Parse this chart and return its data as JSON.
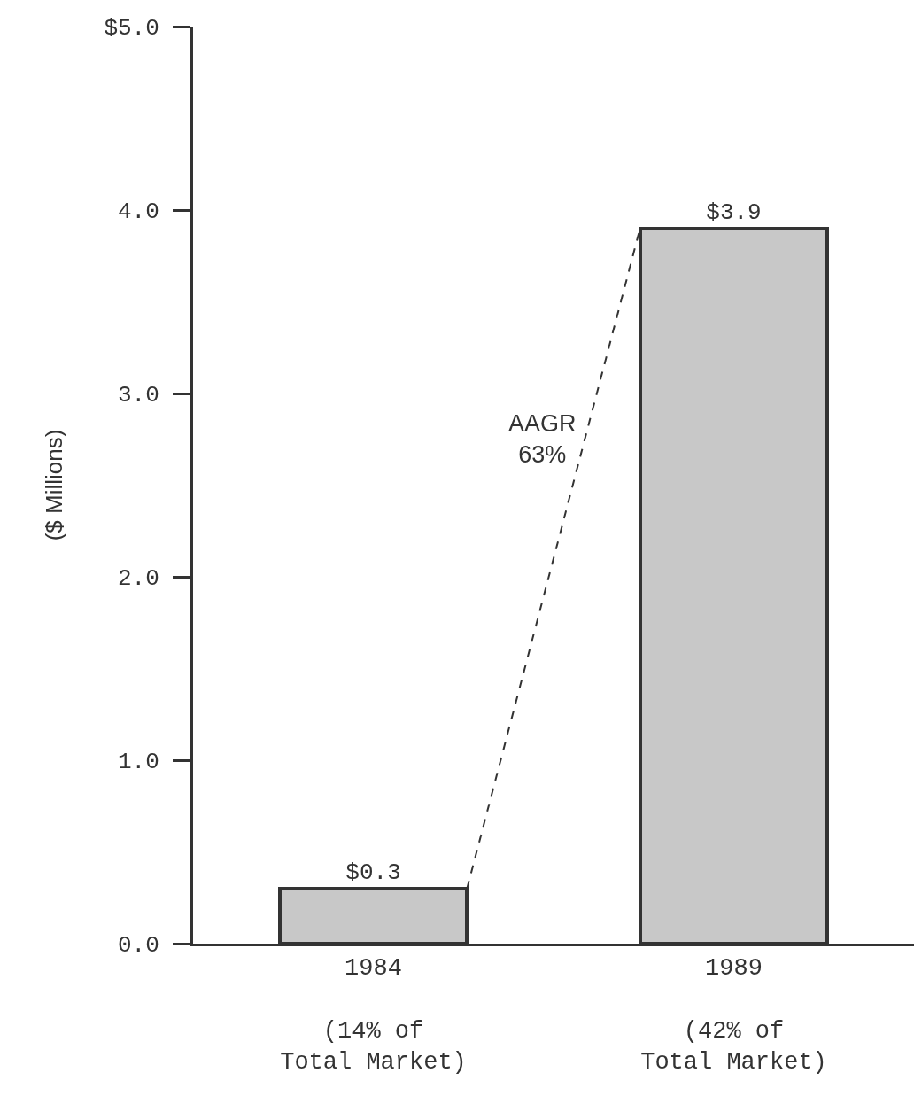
{
  "chart_data": {
    "type": "bar",
    "ylabel": "($ Millions)",
    "categories": [
      "1984\n\n(14% of\nTotal Market)",
      "1989\n\n(42% of\nTotal Market)"
    ],
    "values": [
      0.3,
      3.9
    ],
    "value_labels": [
      "$0.3",
      "$3.9"
    ],
    "color": "#c8c8c8",
    "ylim": [
      0,
      5
    ],
    "yticks": [
      {
        "value": 0,
        "label": "0.0"
      },
      {
        "value": 1,
        "label": "1.0"
      },
      {
        "value": 2,
        "label": "2.0"
      },
      {
        "value": 3,
        "label": "3.0"
      },
      {
        "value": 4,
        "label": "4.0"
      },
      {
        "value": 5,
        "label": "$5.0"
      }
    ],
    "grid": false,
    "annotations": [
      "AAGR\n63%"
    ]
  }
}
